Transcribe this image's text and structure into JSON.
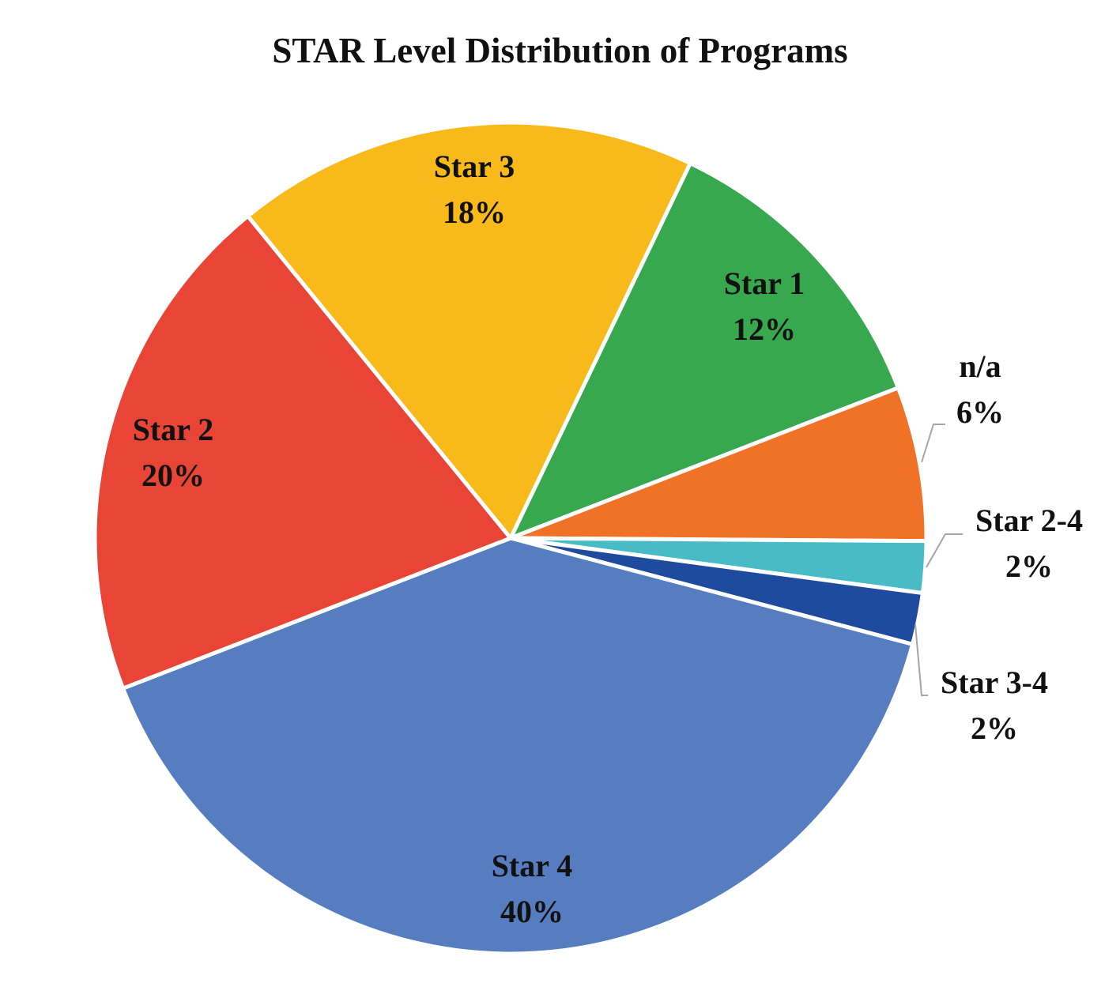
{
  "chart_data": {
    "type": "pie",
    "title": "STAR Level Distribution of Programs",
    "slices": [
      {
        "label": "Star 1",
        "value": 12,
        "display": "12%",
        "color": "#38A84F"
      },
      {
        "label": "n/a",
        "value": 6,
        "display": "6%",
        "color": "#F07226"
      },
      {
        "label": "Star 2-4",
        "value": 2,
        "display": "2%",
        "color": "#48BBC4"
      },
      {
        "label": "Star 3-4",
        "value": 2,
        "display": "2%",
        "color": "#1F4B9E"
      },
      {
        "label": "Star 4",
        "value": 40,
        "display": "40%",
        "color": "#567DC0"
      },
      {
        "label": "Star 2",
        "value": 20,
        "display": "20%",
        "color": "#E84536"
      },
      {
        "label": "Star 3",
        "value": 18,
        "display": "18%",
        "color": "#F8BA1B"
      }
    ],
    "legend": "none",
    "data_labels": "category and percent"
  }
}
